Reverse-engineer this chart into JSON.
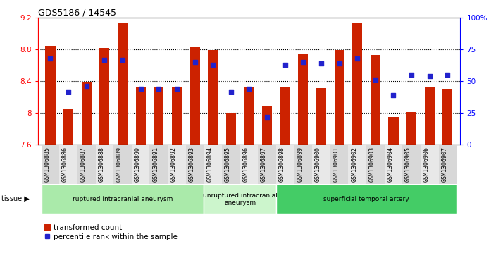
{
  "title": "GDS5186 / 14545",
  "samples": [
    "GSM1306885",
    "GSM1306886",
    "GSM1306887",
    "GSM1306888",
    "GSM1306889",
    "GSM1306890",
    "GSM1306891",
    "GSM1306892",
    "GSM1306893",
    "GSM1306894",
    "GSM1306895",
    "GSM1306896",
    "GSM1306897",
    "GSM1306898",
    "GSM1306899",
    "GSM1306900",
    "GSM1306901",
    "GSM1306902",
    "GSM1306903",
    "GSM1306904",
    "GSM1306905",
    "GSM1306906",
    "GSM1306907"
  ],
  "transformed_count": [
    8.85,
    8.05,
    8.39,
    8.82,
    9.14,
    8.33,
    8.32,
    8.33,
    8.83,
    8.79,
    8.0,
    8.32,
    8.09,
    8.33,
    8.74,
    8.31,
    8.79,
    9.14,
    8.73,
    7.95,
    8.01,
    8.33,
    8.3
  ],
  "percentile_rank": [
    68,
    42,
    46,
    67,
    67,
    44,
    44,
    44,
    65,
    63,
    42,
    44,
    22,
    63,
    65,
    64,
    64,
    68,
    51,
    39,
    55,
    54,
    55
  ],
  "ymin": 7.6,
  "ymax": 9.2,
  "yticks": [
    7.6,
    8.0,
    8.4,
    8.8,
    9.2
  ],
  "ytick_labels": [
    "7.6",
    "8",
    "8.4",
    "8.8",
    "9.2"
  ],
  "right_yticks": [
    0,
    25,
    50,
    75,
    100
  ],
  "right_ytick_labels": [
    "0",
    "25",
    "50",
    "75",
    "100%"
  ],
  "groups": [
    {
      "label": "ruptured intracranial aneurysm",
      "start": 0,
      "end": 8,
      "color": "#aaeaaa"
    },
    {
      "label": "unruptured intracranial\naneurysm",
      "start": 9,
      "end": 12,
      "color": "#ccf5cc"
    },
    {
      "label": "superficial temporal artery",
      "start": 13,
      "end": 22,
      "color": "#44cc66"
    }
  ],
  "bar_color": "#cc2200",
  "dot_color": "#2222cc",
  "legend_bar_label": "transformed count",
  "legend_dot_label": "percentile rank within the sample",
  "xlabel_bg_odd": "#d8d8d8",
  "xlabel_bg_even": "#e8e8e8"
}
